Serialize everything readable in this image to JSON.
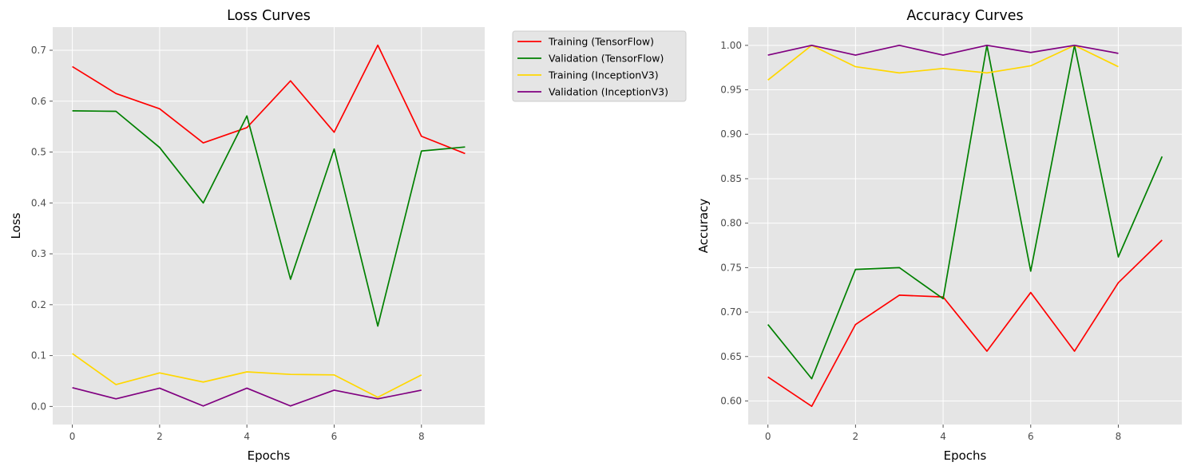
{
  "chart_data": [
    {
      "type": "line",
      "title": "Loss Curves",
      "xlabel": "Epochs",
      "ylabel": "Loss",
      "xlim": [
        -0.45,
        9.45
      ],
      "ylim": [
        -0.0355,
        0.7455
      ],
      "xticks": [
        0,
        2,
        4,
        6,
        8
      ],
      "yticks": [
        0.0,
        0.1,
        0.2,
        0.3,
        0.4,
        0.5,
        0.6,
        0.7
      ],
      "ytick_labels": [
        "0.0",
        "0.1",
        "0.2",
        "0.3",
        "0.4",
        "0.5",
        "0.6",
        "0.7"
      ],
      "grid": true,
      "legend": "outside-top-right",
      "series": [
        {
          "name": "Training (TensorFlow)",
          "color": "#ff0000",
          "x": [
            0,
            1,
            2,
            3,
            4,
            5,
            6,
            7,
            8,
            9
          ],
          "y": [
            0.668,
            0.615,
            0.585,
            0.518,
            0.548,
            0.64,
            0.539,
            0.71,
            0.531,
            0.497
          ]
        },
        {
          "name": "Validation (TensorFlow)",
          "color": "#008000",
          "x": [
            0,
            1,
            2,
            3,
            4,
            5,
            6,
            7,
            8,
            9
          ],
          "y": [
            0.581,
            0.58,
            0.509,
            0.4,
            0.571,
            0.25,
            0.506,
            0.158,
            0.502,
            0.51
          ]
        },
        {
          "name": "Training (InceptionV3)",
          "color": "#ffd700",
          "x": [
            0,
            1,
            2,
            3,
            4,
            5,
            6,
            7,
            8
          ],
          "y": [
            0.104,
            0.043,
            0.066,
            0.048,
            0.068,
            0.063,
            0.062,
            0.018,
            0.062
          ]
        },
        {
          "name": "Validation (InceptionV3)",
          "color": "#800080",
          "x": [
            0,
            1,
            2,
            3,
            4,
            5,
            6,
            7,
            8
          ],
          "y": [
            0.037,
            0.015,
            0.036,
            0.001,
            0.036,
            0.001,
            0.032,
            0.015,
            0.032
          ]
        }
      ]
    },
    {
      "type": "line",
      "title": "Accuracy Curves",
      "xlabel": "Epochs",
      "ylabel": "Accuracy",
      "xlim": [
        -0.45,
        9.45
      ],
      "ylim": [
        0.5735,
        1.0205
      ],
      "xticks": [
        0,
        2,
        4,
        6,
        8
      ],
      "yticks": [
        0.6,
        0.65,
        0.7,
        0.75,
        0.8,
        0.85,
        0.9,
        0.95,
        1.0
      ],
      "ytick_labels": [
        "0.60",
        "0.65",
        "0.70",
        "0.75",
        "0.80",
        "0.85",
        "0.90",
        "0.95",
        "1.00"
      ],
      "grid": true,
      "legend": "none",
      "series": [
        {
          "name": "Training (TensorFlow)",
          "color": "#ff0000",
          "x": [
            0,
            1,
            2,
            3,
            4,
            5,
            6,
            7,
            8,
            9
          ],
          "y": [
            0.627,
            0.594,
            0.686,
            0.719,
            0.717,
            0.656,
            0.722,
            0.656,
            0.733,
            0.781
          ]
        },
        {
          "name": "Validation (TensorFlow)",
          "color": "#008000",
          "x": [
            0,
            1,
            2,
            3,
            4,
            5,
            6,
            7,
            8,
            9
          ],
          "y": [
            0.686,
            0.625,
            0.748,
            0.75,
            0.715,
            1.0,
            0.746,
            1.0,
            0.762,
            0.875
          ]
        },
        {
          "name": "Training (InceptionV3)",
          "color": "#ffd700",
          "x": [
            0,
            1,
            2,
            3,
            4,
            5,
            6,
            7,
            8
          ],
          "y": [
            0.961,
            1.0,
            0.976,
            0.969,
            0.974,
            0.969,
            0.977,
            1.0,
            0.976
          ]
        },
        {
          "name": "Validation (InceptionV3)",
          "color": "#800080",
          "x": [
            0,
            1,
            2,
            3,
            4,
            5,
            6,
            7,
            8
          ],
          "y": [
            0.989,
            1.0,
            0.989,
            1.0,
            0.989,
            1.0,
            0.992,
            1.0,
            0.991
          ]
        }
      ]
    }
  ]
}
